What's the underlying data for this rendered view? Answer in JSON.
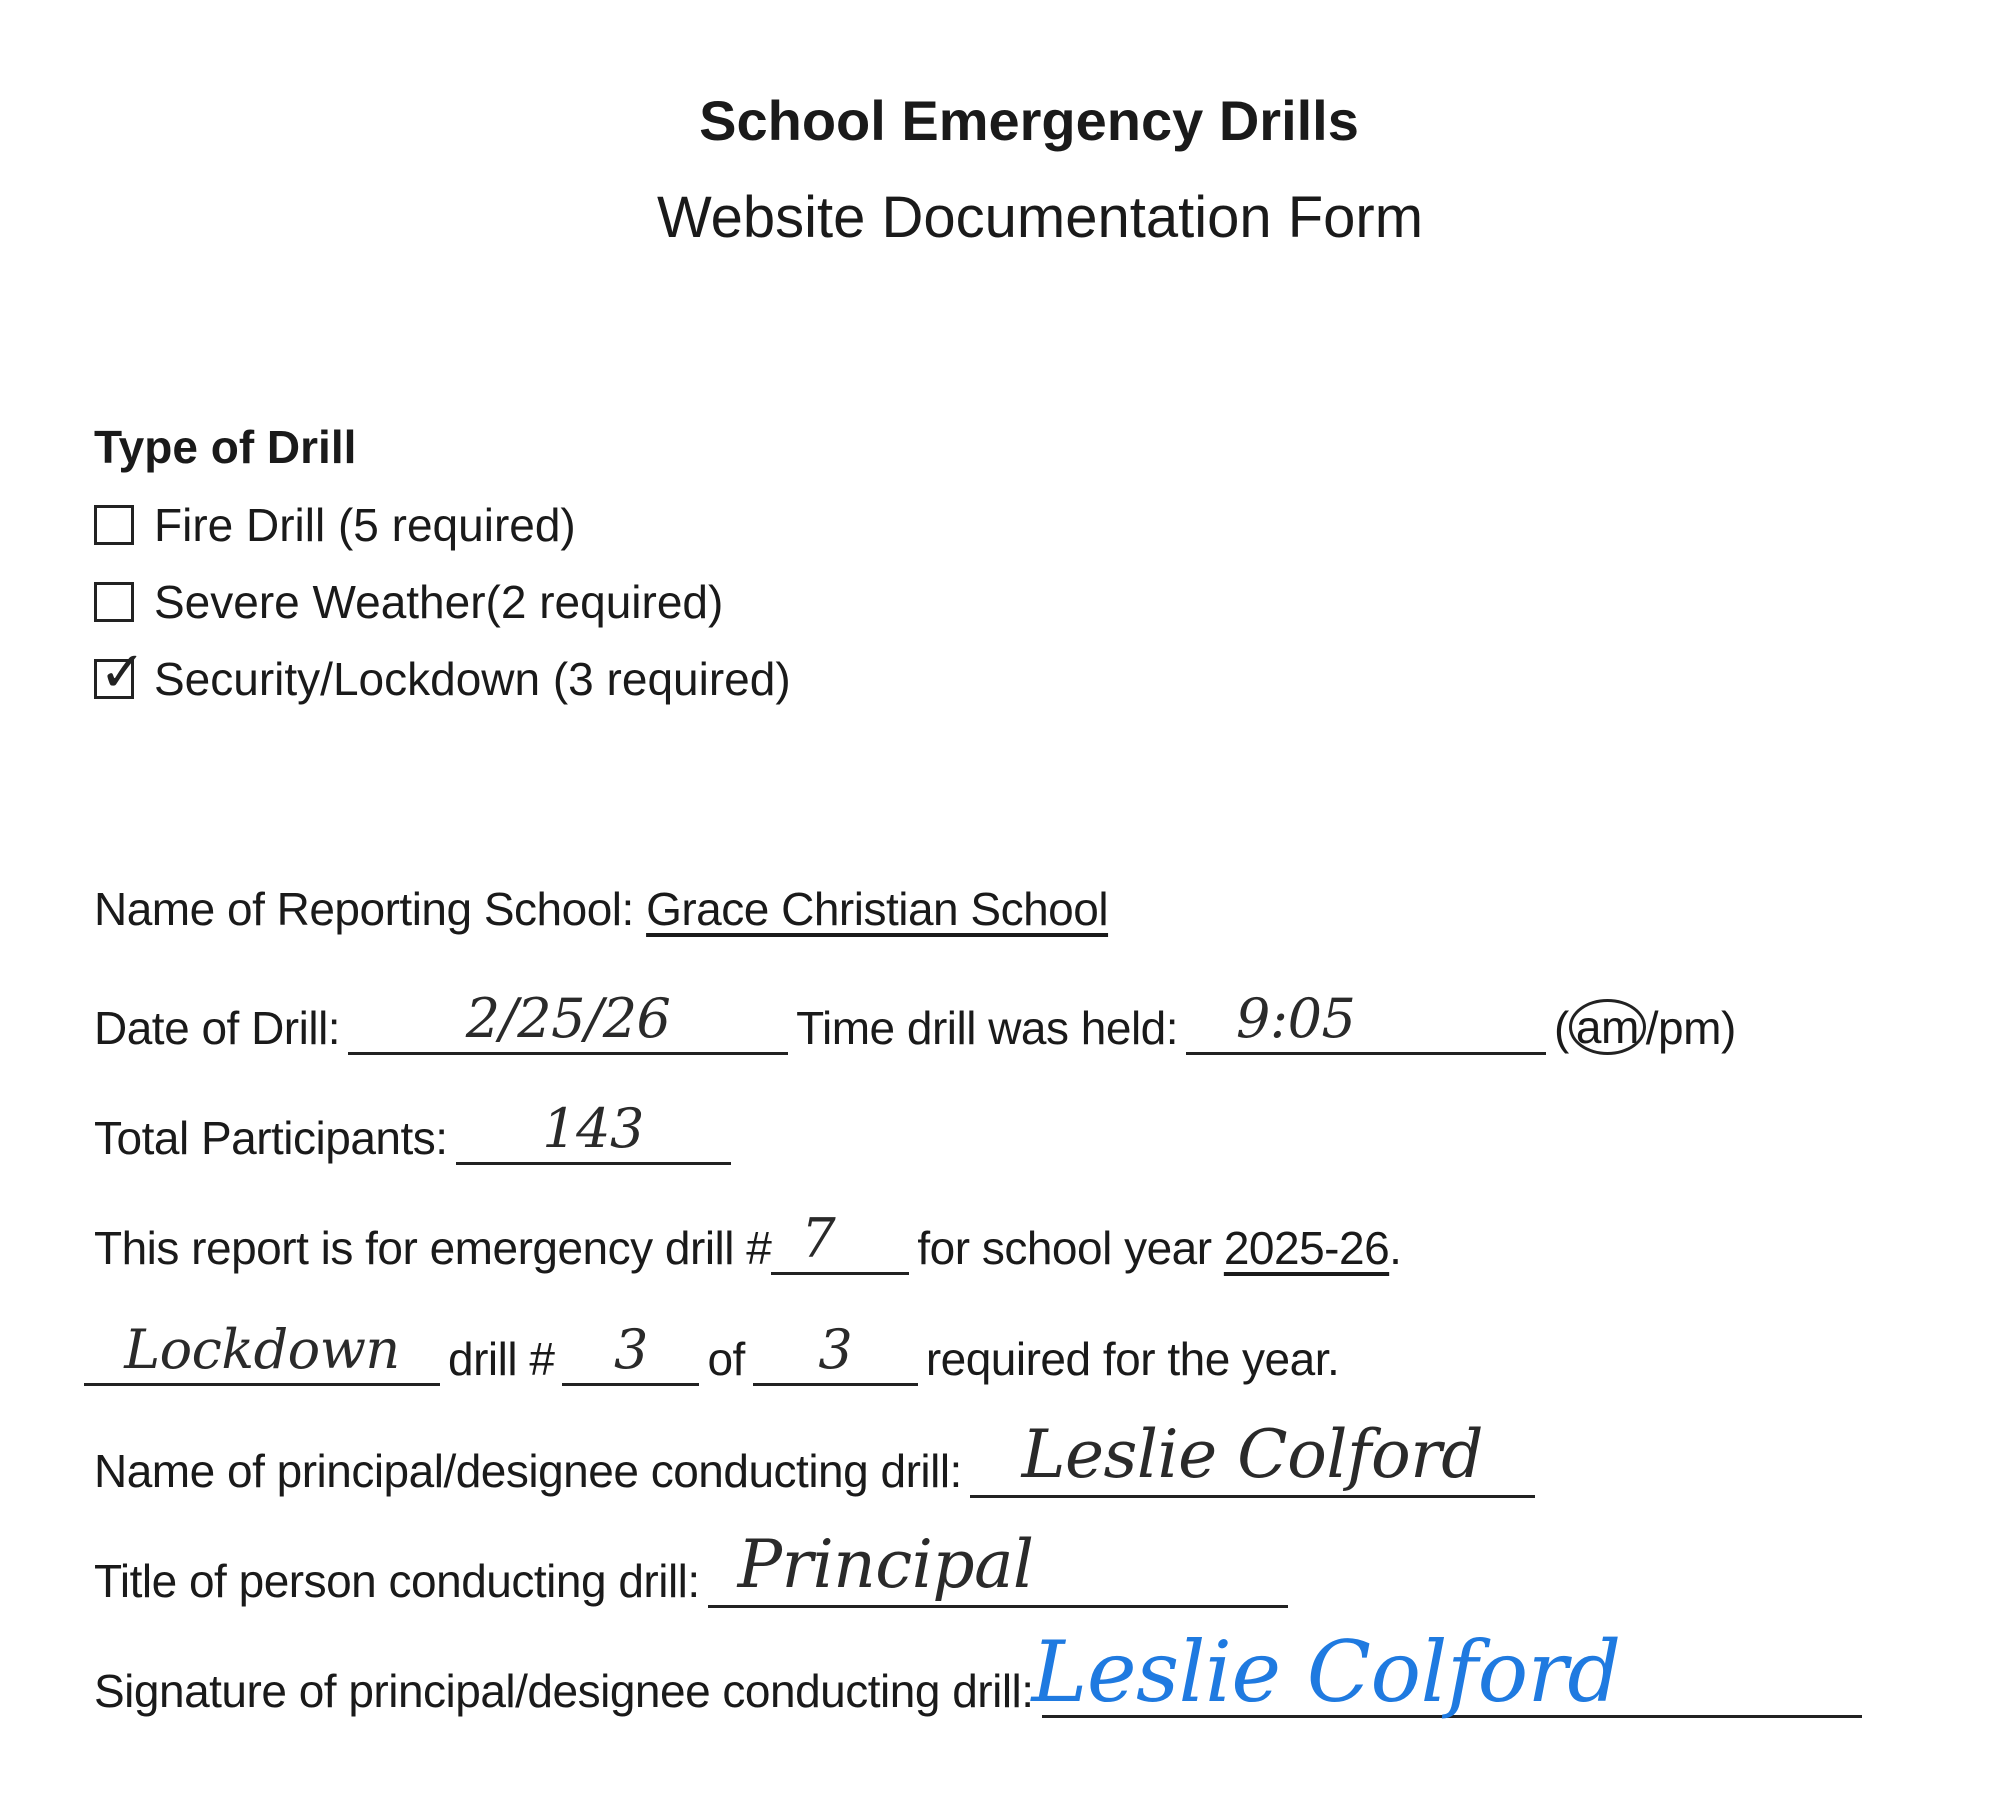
{
  "header": {
    "title": "School Emergency Drills",
    "subtitle": "Website Documentation Form"
  },
  "drill_type": {
    "heading": "Type of Drill",
    "options": [
      {
        "label": "Fire Drill (5 required)",
        "checked": false
      },
      {
        "label": "Severe Weather(2 required)",
        "checked": false
      },
      {
        "label": "Security/Lockdown (3 required)",
        "checked": true
      }
    ],
    "check_mark": "✓"
  },
  "fields": {
    "school_label": "Name of Reporting School:",
    "school_value": "Grace Christian School",
    "date_label": "Date of Drill:",
    "date_value": "2/25/26",
    "time_label": "Time drill was held:",
    "time_value": "9:05",
    "ampm_open": "(",
    "am": "am",
    "ampm_sep": "/pm)",
    "participants_label": "Total Participants:",
    "participants_value": "143",
    "report_label": "This report is for emergency drill #",
    "report_drill_number": "7",
    "school_year_label": "for school year",
    "school_year_value": "2025-26",
    "period": ".",
    "drill_kind_value": "Lockdown",
    "drill_num_label": "drill #",
    "drill_num_value": "3",
    "of_label": "of",
    "drill_total_value": "3",
    "required_label": "required for the year.",
    "principal_label": "Name of principal/designee conducting drill:",
    "principal_value": "Leslie Colford",
    "title_label": "Title of person conducting drill:",
    "title_value": "Principal",
    "signature_label": "Signature of principal/designee conducting drill:",
    "signature_value": "Leslie Colford"
  },
  "colors": {
    "ink": "#1a1a1a",
    "signature_ink": "#1f7ae0"
  }
}
